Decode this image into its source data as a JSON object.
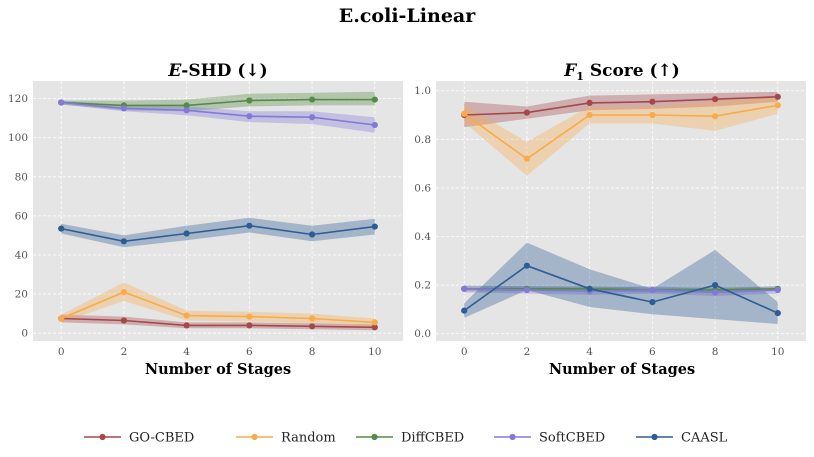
{
  "figure_title": "E.coli-Linear",
  "colors": {
    "GO-CBED": "#A5484B",
    "Random": "#F7AB4A",
    "DiffCBED": "#558B45",
    "SoftCBED": "#8479D9",
    "CAASL": "#2D5D94",
    "panel_bg": "#E5E5E5",
    "grid": "#FFFFFF"
  },
  "chart_data": [
    {
      "type": "line",
      "title_metric": "E",
      "title_rest": "-SHD (↓)",
      "xlabel": "Number of Stages",
      "ylabel": "",
      "xlim": [
        -0.9,
        10.9
      ],
      "ylim": [
        -4,
        129
      ],
      "xticks": [
        0,
        2,
        4,
        6,
        8,
        10
      ],
      "yticks": [
        0,
        20,
        40,
        60,
        80,
        100,
        120
      ],
      "grid": true,
      "x": [
        0,
        2,
        4,
        6,
        8,
        10
      ],
      "series": [
        {
          "name": "GO-CBED",
          "values": [
            7.5,
            6.5,
            4,
            4,
            3.5,
            3
          ],
          "lower": [
            5.5,
            4.5,
            2.5,
            2.5,
            2,
            1.5
          ],
          "upper": [
            9.5,
            8.5,
            5.5,
            5.5,
            5,
            4.5
          ]
        },
        {
          "name": "Random",
          "values": [
            7.5,
            21,
            9,
            8.5,
            7.5,
            5.5
          ],
          "lower": [
            5.5,
            16.5,
            6.5,
            6,
            5,
            3.5
          ],
          "upper": [
            9.5,
            26,
            11.5,
            11,
            10,
            7.5
          ]
        },
        {
          "name": "DiffCBED",
          "values": [
            118,
            116.5,
            116.5,
            119,
            119.5,
            119.5
          ],
          "lower": [
            117,
            114,
            113.5,
            116,
            116.5,
            116.5
          ],
          "upper": [
            119,
            119,
            119.5,
            122.5,
            123,
            123.5
          ]
        },
        {
          "name": "SoftCBED",
          "values": [
            118,
            115,
            114,
            111,
            110.5,
            106.5
          ],
          "lower": [
            117,
            113.5,
            111.5,
            108,
            107,
            102.5
          ],
          "upper": [
            119,
            116.5,
            116,
            113.5,
            113.5,
            110.5
          ]
        },
        {
          "name": "CAASL",
          "values": [
            53.5,
            47,
            51,
            55,
            50.5,
            54.5
          ],
          "lower": [
            51,
            44,
            47.5,
            51.5,
            47,
            50.5
          ],
          "upper": [
            56,
            50,
            55,
            59,
            55,
            58.5
          ]
        }
      ]
    },
    {
      "type": "line",
      "title_metric": "F",
      "title_sub": "1",
      "title_rest": " Score (↑)",
      "xlabel": "Number of Stages",
      "ylabel": "",
      "xlim": [
        -0.9,
        10.9
      ],
      "ylim": [
        -0.03,
        1.04
      ],
      "xticks": [
        0,
        2,
        4,
        6,
        8,
        10
      ],
      "yticks": [
        0.0,
        0.2,
        0.4,
        0.6,
        0.8,
        1.0
      ],
      "grid": true,
      "x": [
        0,
        2,
        4,
        6,
        8,
        10
      ],
      "series": [
        {
          "name": "GO-CBED",
          "values": [
            0.9,
            0.91,
            0.95,
            0.955,
            0.965,
            0.975
          ],
          "lower": [
            0.85,
            0.885,
            0.92,
            0.925,
            0.935,
            0.955
          ],
          "upper": [
            0.955,
            0.935,
            0.98,
            0.985,
            0.99,
            0.995
          ]
        },
        {
          "name": "Random",
          "values": [
            0.905,
            0.72,
            0.9,
            0.9,
            0.895,
            0.94
          ],
          "lower": [
            0.87,
            0.65,
            0.865,
            0.865,
            0.835,
            0.905
          ],
          "upper": [
            0.94,
            0.79,
            0.935,
            0.935,
            0.955,
            0.975
          ]
        },
        {
          "name": "DiffCBED",
          "values": [
            0.185,
            0.185,
            0.185,
            0.18,
            0.18,
            0.185
          ],
          "lower": [
            0.175,
            0.175,
            0.175,
            0.17,
            0.17,
            0.175
          ],
          "upper": [
            0.195,
            0.195,
            0.195,
            0.19,
            0.19,
            0.195
          ]
        },
        {
          "name": "SoftCBED",
          "values": [
            0.185,
            0.18,
            0.175,
            0.18,
            0.17,
            0.18
          ],
          "lower": [
            0.17,
            0.165,
            0.16,
            0.165,
            0.155,
            0.165
          ],
          "upper": [
            0.2,
            0.195,
            0.19,
            0.195,
            0.185,
            0.195
          ]
        },
        {
          "name": "CAASL",
          "values": [
            0.095,
            0.28,
            0.185,
            0.13,
            0.2,
            0.085
          ],
          "lower": [
            0.065,
            0.18,
            0.11,
            0.08,
            0.06,
            0.04
          ],
          "upper": [
            0.125,
            0.375,
            0.265,
            0.185,
            0.345,
            0.13
          ]
        }
      ]
    }
  ],
  "legend": {
    "position": "bottom-center",
    "entries": [
      "GO-CBED",
      "Random",
      "DiffCBED",
      "SoftCBED",
      "CAASL"
    ]
  }
}
